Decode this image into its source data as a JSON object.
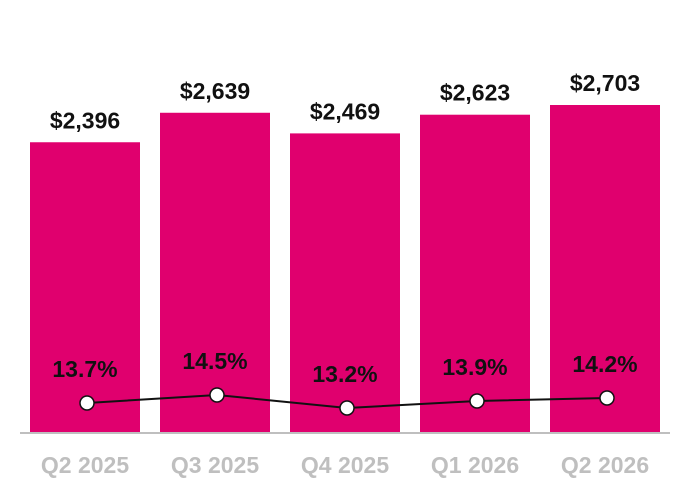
{
  "chart_data": {
    "type": "bar",
    "categories": [
      "Q2 2025",
      "Q3 2025",
      "Q4 2025",
      "Q1 2026",
      "Q2 2026"
    ],
    "series": [
      {
        "type": "bar",
        "values": [
          2396,
          2639,
          2469,
          2623,
          2703
        ],
        "labels": [
          "$2,396",
          "$2,639",
          "$2,469",
          "$2,623",
          "$2,703"
        ],
        "color": "#e0006e"
      },
      {
        "type": "line",
        "values": [
          13.7,
          14.5,
          13.2,
          13.9,
          14.2
        ],
        "labels": [
          "13.7%",
          "14.5%",
          "13.2%",
          "13.9%",
          "14.2%"
        ],
        "color": "#111111"
      }
    ],
    "ylim": [
      0,
      2703
    ],
    "grid": false,
    "legend": "none",
    "axis_color": "#bfbfbf"
  }
}
